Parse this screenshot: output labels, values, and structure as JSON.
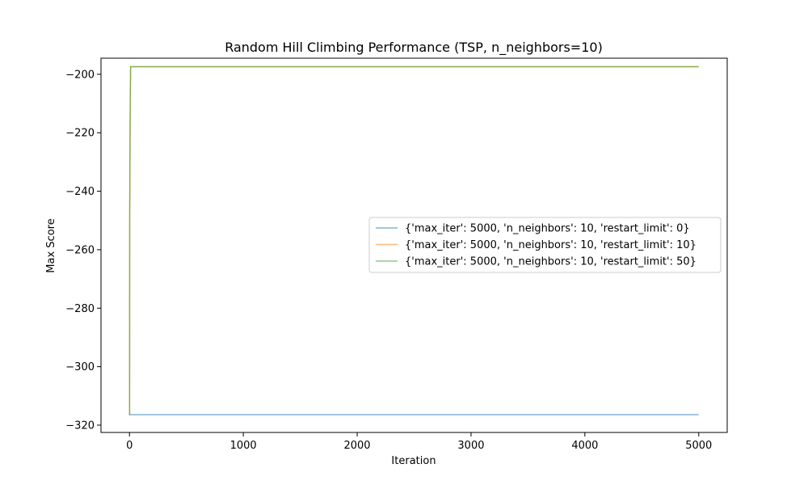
{
  "chart_data": {
    "type": "line",
    "title": "Random Hill Climbing Performance (TSP, n_neighbors=10)",
    "xlabel": "Iteration",
    "ylabel": "Max Score",
    "xlim": [
      -250,
      5250
    ],
    "ylim": [
      -322.5,
      -194.5
    ],
    "xticks": [
      0,
      1000,
      2000,
      3000,
      4000,
      5000
    ],
    "yticks": [
      -320,
      -300,
      -280,
      -260,
      -240,
      -220,
      -200
    ],
    "grid": false,
    "legend_position": "center-right",
    "series": [
      {
        "name": "{'max_iter': 5000, 'n_neighbors': 10, 'restart_limit': 0}",
        "color": "#1f77b4",
        "x": [
          0,
          5000
        ],
        "y": [
          -316.4,
          -316.4
        ]
      },
      {
        "name": "{'max_iter': 5000, 'n_neighbors': 10, 'restart_limit': 10}",
        "color": "#ff7f0e",
        "x": [
          0,
          1,
          2,
          5,
          8,
          10,
          5000
        ],
        "y": [
          -316.4,
          -316.4,
          -250,
          -221,
          -206,
          -197.4,
          -197.4
        ]
      },
      {
        "name": "{'max_iter': 5000, 'n_neighbors': 10, 'restart_limit': 50}",
        "color": "#2ca02c",
        "x": [
          0,
          1,
          2,
          5,
          8,
          10,
          5000
        ],
        "y": [
          -316.4,
          -316.4,
          -250,
          -221,
          -206,
          -197.4,
          -197.4
        ]
      }
    ]
  }
}
